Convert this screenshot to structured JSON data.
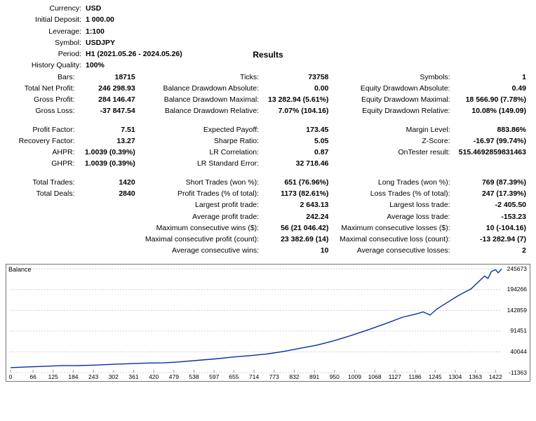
{
  "header": {
    "currency_label": "Currency:",
    "currency": "USD",
    "deposit_label": "Initial Deposit:",
    "deposit": "1 000.00",
    "leverage_label": "Leverage:",
    "leverage": "1:100",
    "symbol_label": "Symbol:",
    "symbol": "USDJPY",
    "period_label": "Period:",
    "period": "H1 (2021.05.26 - 2024.05.26)",
    "results_title": "Results",
    "hist_label": "History Quality:",
    "hist": "100%"
  },
  "grid": {
    "c1": [
      {
        "l": "Bars:",
        "v": "18715"
      },
      {
        "l": "Total Net Profit:",
        "v": "246 298.93"
      },
      {
        "l": "Gross Profit:",
        "v": "284 146.47"
      },
      {
        "l": "Gross Loss:",
        "v": "-37 847.54"
      },
      {
        "gap": true
      },
      {
        "l": "Profit Factor:",
        "v": "7.51"
      },
      {
        "l": "Recovery Factor:",
        "v": "13.27"
      },
      {
        "l": "AHPR:",
        "v": "1.0039 (0.39%)"
      },
      {
        "l": "GHPR:",
        "v": "1.0039 (0.39%)"
      },
      {
        "gap": true
      },
      {
        "l": "Total Trades:",
        "v": "1420"
      },
      {
        "l": "Total Deals:",
        "v": "2840"
      }
    ],
    "c2": [
      {
        "l": "Ticks:",
        "v": "73758"
      },
      {
        "l": "Balance Drawdown Absolute:",
        "v": "0.00"
      },
      {
        "l": "Balance Drawdown Maximal:",
        "v": "13 282.94 (5.61%)"
      },
      {
        "l": "Balance Drawdown Relative:",
        "v": "7.07% (104.16)"
      },
      {
        "gap": true
      },
      {
        "l": "Expected Payoff:",
        "v": "173.45"
      },
      {
        "l": "Sharpe Ratio:",
        "v": "5.05"
      },
      {
        "l": "LR Correlation:",
        "v": "0.87"
      },
      {
        "l": "LR Standard Error:",
        "v": "32 718.46"
      },
      {
        "gap": true
      },
      {
        "l": "Short Trades (won %):",
        "v": "651 (76.96%)"
      },
      {
        "l": "Profit Trades (% of total):",
        "v": "1173 (82.61%)"
      },
      {
        "l": "Largest profit trade:",
        "v": "2 643.13"
      },
      {
        "l": "Average profit trade:",
        "v": "242.24"
      },
      {
        "l": "Maximum consecutive wins ($):",
        "v": "56 (21 046.42)"
      },
      {
        "l": "Maximal consecutive profit (count):",
        "v": "23 382.69 (14)"
      },
      {
        "l": "Average consecutive wins:",
        "v": "10"
      }
    ],
    "c3": [
      {
        "l": "Symbols:",
        "v": "1"
      },
      {
        "l": "Equity Drawdown Absolute:",
        "v": "0.49"
      },
      {
        "l": "Equity Drawdown Maximal:",
        "v": "18 566.90 (7.78%)"
      },
      {
        "l": "Equity Drawdown Relative:",
        "v": "10.08% (149.09)"
      },
      {
        "gap": true
      },
      {
        "l": "Margin Level:",
        "v": "883.86%"
      },
      {
        "l": "Z-Score:",
        "v": "-16.97 (99.74%)"
      },
      {
        "l": "OnTester result:",
        "v": "515.4692859831463"
      },
      {
        "l": "",
        "v": ""
      },
      {
        "gap": true
      },
      {
        "l": "Long Trades (won %):",
        "v": "769 (87.39%)"
      },
      {
        "l": "Loss Trades (% of total):",
        "v": "247 (17.39%)"
      },
      {
        "l": "Largest loss trade:",
        "v": "-2 405.50"
      },
      {
        "l": "Average loss trade:",
        "v": "-153.23"
      },
      {
        "l": "Maximum consecutive losses ($):",
        "v": "10 (-104.16)"
      },
      {
        "l": "Maximal consecutive loss (count):",
        "v": "-13 282.94 (7)"
      },
      {
        "l": "Average consecutive losses:",
        "v": "2"
      }
    ]
  },
  "chart": {
    "label": "Balance",
    "type": "line",
    "background_color": "#ffffff",
    "grid_color": "#d0d0d0",
    "line_color": "#0b2ca8",
    "line_width": 1.4,
    "xmin": 0,
    "xmax": 1440,
    "ymin": -11363,
    "ymax": 246000,
    "xticks": [
      0,
      66,
      125,
      184,
      243,
      302,
      361,
      420,
      479,
      538,
      597,
      655,
      714,
      773,
      832,
      891,
      950,
      1009,
      1068,
      1127,
      1186,
      1245,
      1304,
      1363,
      1422
    ],
    "yticks": [
      245673,
      194266,
      142859,
      91451,
      40044,
      -11363
    ],
    "points": [
      [
        0,
        1000
      ],
      [
        50,
        2800
      ],
      [
        100,
        4200
      ],
      [
        150,
        5800
      ],
      [
        200,
        6100
      ],
      [
        250,
        7300
      ],
      [
        300,
        9200
      ],
      [
        350,
        10800
      ],
      [
        400,
        12200
      ],
      [
        450,
        12800
      ],
      [
        500,
        15500
      ],
      [
        550,
        19000
      ],
      [
        600,
        22500
      ],
      [
        650,
        27000
      ],
      [
        700,
        30500
      ],
      [
        750,
        34500
      ],
      [
        800,
        41000
      ],
      [
        850,
        49000
      ],
      [
        900,
        57000
      ],
      [
        950,
        68000
      ],
      [
        1000,
        81000
      ],
      [
        1050,
        95000
      ],
      [
        1100,
        110000
      ],
      [
        1150,
        126000
      ],
      [
        1190,
        134000
      ],
      [
        1210,
        139000
      ],
      [
        1230,
        131000
      ],
      [
        1250,
        146000
      ],
      [
        1280,
        162000
      ],
      [
        1310,
        178000
      ],
      [
        1330,
        187000
      ],
      [
        1350,
        196000
      ],
      [
        1370,
        212000
      ],
      [
        1390,
        228000
      ],
      [
        1400,
        222000
      ],
      [
        1410,
        239000
      ],
      [
        1422,
        244000
      ],
      [
        1430,
        236000
      ],
      [
        1440,
        245673
      ]
    ]
  }
}
